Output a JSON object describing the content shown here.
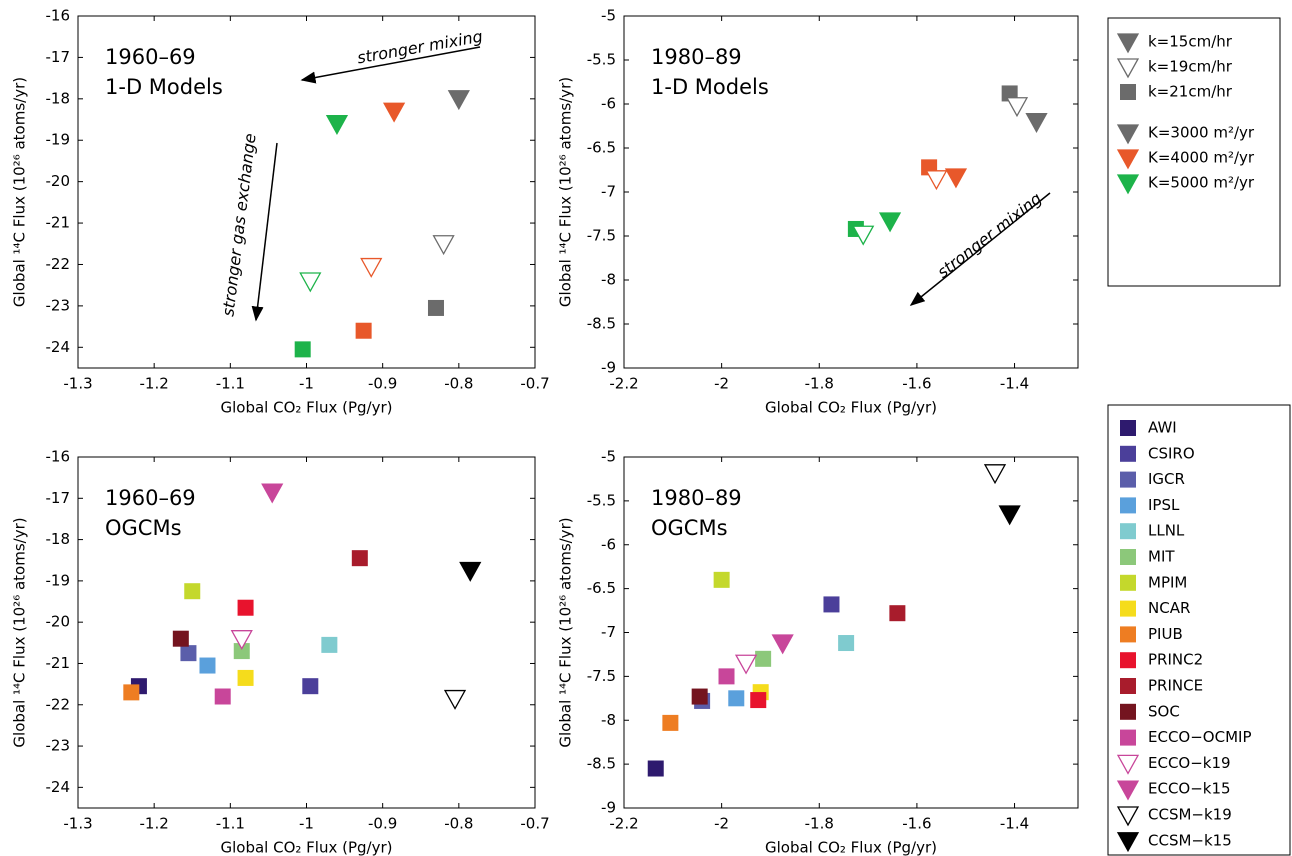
{
  "chart_data": [
    {
      "type": "scatter",
      "xlabel": "Global CO₂ Flux (Pg/yr)",
      "ylabel": "Global ¹⁴C Flux (10²⁶ atoms/yr)",
      "title_lines": [
        "1960–69",
        "1-D Models"
      ],
      "annotations": [
        "stronger mixing",
        "stronger gas exchange"
      ],
      "xlim": [
        -1.3,
        -0.7
      ],
      "xticks": [
        -1.3,
        -1.2,
        -1.1,
        -1,
        -0.9,
        -0.8,
        -0.7
      ],
      "ylim": [
        -24.5,
        -16
      ],
      "yticks": [
        -24,
        -23,
        -22,
        -21,
        -20,
        -19,
        -18,
        -17,
        -16
      ],
      "series": [
        {
          "color": "#6b6b6b",
          "markers": [
            "triangle-down",
            "triangle-down-open",
            "square"
          ],
          "x": [
            -0.8,
            -0.82,
            -0.83
          ],
          "values": [
            -18.0,
            -21.5,
            -23.05
          ]
        },
        {
          "color": "#e8582a",
          "markers": [
            "triangle-down",
            "triangle-down-open",
            "square"
          ],
          "x": [
            -0.885,
            -0.915,
            -0.925
          ],
          "values": [
            -18.3,
            -22.05,
            -23.6
          ]
        },
        {
          "color": "#1db34a",
          "markers": [
            "triangle-down",
            "triangle-down-open",
            "square"
          ],
          "x": [
            -0.96,
            -0.995,
            -1.005
          ],
          "values": [
            -18.6,
            -22.4,
            -24.05
          ]
        }
      ]
    },
    {
      "type": "scatter",
      "xlabel": "Global CO₂ Flux (Pg/yr)",
      "ylabel": "Global ¹⁴C Flux (10²⁶ atoms/yr)",
      "title_lines": [
        "1980–89",
        "1-D Models"
      ],
      "annotations": [
        "stronger mixing"
      ],
      "xlim": [
        -2.2,
        -1.27
      ],
      "xticks": [
        -2.2,
        -2,
        -1.8,
        -1.6,
        -1.4
      ],
      "ylim": [
        -9,
        -5
      ],
      "yticks": [
        -9,
        -8.5,
        -8,
        -7.5,
        -7,
        -6.5,
        -6,
        -5.5,
        -5
      ],
      "series": [
        {
          "color": "#6b6b6b",
          "markers": [
            "square",
            "triangle-down-open",
            "triangle-down"
          ],
          "x": [
            -1.41,
            -1.395,
            -1.355
          ],
          "values": [
            -5.88,
            -6.02,
            -6.2
          ]
        },
        {
          "color": "#e8582a",
          "markers": [
            "square",
            "triangle-down-open",
            "triangle-down"
          ],
          "x": [
            -1.575,
            -1.56,
            -1.52
          ],
          "values": [
            -6.72,
            -6.85,
            -6.83
          ]
        },
        {
          "color": "#1db34a",
          "markers": [
            "square",
            "triangle-down-open",
            "triangle-down"
          ],
          "x": [
            -1.725,
            -1.71,
            -1.655
          ],
          "values": [
            -7.42,
            -7.48,
            -7.33
          ]
        }
      ]
    },
    {
      "type": "scatter",
      "xlabel": "Global CO₂ Flux (Pg/yr)",
      "ylabel": "Global ¹⁴C Flux (10²⁶ atoms/yr)",
      "title_lines": [
        "1960–69",
        "OGCMs"
      ],
      "xlim": [
        -1.3,
        -0.7
      ],
      "xticks": [
        -1.3,
        -1.2,
        -1.1,
        -1,
        -0.9,
        -0.8,
        -0.7
      ],
      "ylim": [
        -24.5,
        -16
      ],
      "yticks": [
        -24,
        -23,
        -22,
        -21,
        -20,
        -19,
        -18,
        -17,
        -16
      ],
      "series": [
        {
          "color": "#2e1a6e",
          "markers": [
            "square"
          ],
          "x": [
            -1.22
          ],
          "values": [
            -21.55
          ]
        },
        {
          "color": "#4b3f9a",
          "markers": [
            "square"
          ],
          "x": [
            -0.995
          ],
          "values": [
            -21.55
          ]
        },
        {
          "color": "#5b5eaa",
          "markers": [
            "square"
          ],
          "x": [
            -1.155
          ],
          "values": [
            -20.75
          ]
        },
        {
          "color": "#5aa0dc",
          "markers": [
            "square"
          ],
          "x": [
            -1.13
          ],
          "values": [
            -21.05
          ]
        },
        {
          "color": "#7fcbcf",
          "markers": [
            "square"
          ],
          "x": [
            -0.97
          ],
          "values": [
            -20.55
          ]
        },
        {
          "color": "#8cc87a",
          "markers": [
            "square"
          ],
          "x": [
            -1.085
          ],
          "values": [
            -20.7
          ]
        },
        {
          "color": "#c4d82c",
          "markers": [
            "square"
          ],
          "x": [
            -1.15
          ],
          "values": [
            -19.25
          ]
        },
        {
          "color": "#f5dc1c",
          "markers": [
            "square"
          ],
          "x": [
            -1.08
          ],
          "values": [
            -21.35
          ]
        },
        {
          "color": "#ee7d22",
          "markers": [
            "square"
          ],
          "x": [
            -1.23
          ],
          "values": [
            -21.7
          ]
        },
        {
          "color": "#e8132d",
          "markers": [
            "square"
          ],
          "x": [
            -1.08
          ],
          "values": [
            -19.65
          ]
        },
        {
          "color": "#a81c2c",
          "markers": [
            "square"
          ],
          "x": [
            -0.93
          ],
          "values": [
            -18.45
          ]
        },
        {
          "color": "#74141f",
          "markers": [
            "square"
          ],
          "x": [
            -1.165
          ],
          "values": [
            -20.4
          ]
        },
        {
          "color": "#c8469a",
          "markers": [
            "square"
          ],
          "x": [
            -1.11
          ],
          "values": [
            -21.8
          ]
        },
        {
          "color": "#c8469a",
          "markers": [
            "triangle-down-open"
          ],
          "x": [
            -1.085
          ],
          "values": [
            -20.4
          ]
        },
        {
          "color": "#c8469a",
          "markers": [
            "triangle-down"
          ],
          "x": [
            -1.045
          ],
          "values": [
            -16.85
          ]
        },
        {
          "color": "#000000",
          "markers": [
            "triangle-down-open"
          ],
          "x": [
            -0.805
          ],
          "values": [
            -21.85
          ]
        },
        {
          "color": "#000000",
          "markers": [
            "triangle-down"
          ],
          "x": [
            -0.785
          ],
          "values": [
            -18.75
          ]
        }
      ]
    },
    {
      "type": "scatter",
      "xlabel": "Global CO₂ Flux (Pg/yr)",
      "ylabel": "Global ¹⁴C Flux (10²⁶ atoms/yr)",
      "title_lines": [
        "1980–89",
        "OGCMs"
      ],
      "xlim": [
        -2.2,
        -1.27
      ],
      "xticks": [
        -2.2,
        -2,
        -1.8,
        -1.6,
        -1.4
      ],
      "ylim": [
        -9,
        -5
      ],
      "yticks": [
        -9,
        -8.5,
        -8,
        -7.5,
        -7,
        -6.5,
        -6,
        -5.5,
        -5
      ],
      "series": [
        {
          "color": "#2e1a6e",
          "markers": [
            "square"
          ],
          "x": [
            -2.135
          ],
          "values": [
            -8.55
          ]
        },
        {
          "color": "#4b3f9a",
          "markers": [
            "square"
          ],
          "x": [
            -1.775
          ],
          "values": [
            -6.68
          ]
        },
        {
          "color": "#5b5eaa",
          "markers": [
            "square"
          ],
          "x": [
            -2.04
          ],
          "values": [
            -7.78
          ]
        },
        {
          "color": "#5aa0dc",
          "markers": [
            "square"
          ],
          "x": [
            -1.97
          ],
          "values": [
            -7.75
          ]
        },
        {
          "color": "#7fcbcf",
          "markers": [
            "square"
          ],
          "x": [
            -1.745
          ],
          "values": [
            -7.12
          ]
        },
        {
          "color": "#8cc87a",
          "markers": [
            "square"
          ],
          "x": [
            -1.915
          ],
          "values": [
            -7.3
          ]
        },
        {
          "color": "#c4d82c",
          "markers": [
            "square"
          ],
          "x": [
            -2.0
          ],
          "values": [
            -6.4
          ]
        },
        {
          "color": "#f5dc1c",
          "markers": [
            "square"
          ],
          "x": [
            -1.92
          ],
          "values": [
            -7.68
          ]
        },
        {
          "color": "#ee7d22",
          "markers": [
            "square"
          ],
          "x": [
            -2.105
          ],
          "values": [
            -8.03
          ]
        },
        {
          "color": "#e8132d",
          "markers": [
            "square"
          ],
          "x": [
            -1.925
          ],
          "values": [
            -7.77
          ]
        },
        {
          "color": "#a81c2c",
          "markers": [
            "square"
          ],
          "x": [
            -1.64
          ],
          "values": [
            -6.78
          ]
        },
        {
          "color": "#74141f",
          "markers": [
            "square"
          ],
          "x": [
            -2.045
          ],
          "values": [
            -7.73
          ]
        },
        {
          "color": "#c8469a",
          "markers": [
            "square"
          ],
          "x": [
            -1.99
          ],
          "values": [
            -7.5
          ]
        },
        {
          "color": "#c8469a",
          "markers": [
            "triangle-down-open"
          ],
          "x": [
            -1.95
          ],
          "values": [
            -7.35
          ]
        },
        {
          "color": "#c8469a",
          "markers": [
            "triangle-down"
          ],
          "x": [
            -1.875
          ],
          "values": [
            -7.12
          ]
        },
        {
          "color": "#000000",
          "markers": [
            "triangle-down-open"
          ],
          "x": [
            -1.44
          ],
          "values": [
            -5.18
          ]
        },
        {
          "color": "#000000",
          "markers": [
            "triangle-down"
          ],
          "x": [
            -1.41
          ],
          "values": [
            -5.65
          ]
        }
      ]
    }
  ],
  "legends": [
    {
      "entries": [
        {
          "name": "k=15cm/hr",
          "marker": "triangle-down",
          "color": "#6b6b6b"
        },
        {
          "name": "k=19cm/hr",
          "marker": "triangle-down-open",
          "color": "#6b6b6b"
        },
        {
          "name": "k=21cm/hr",
          "marker": "square",
          "color": "#6b6b6b"
        },
        {
          "name": "K=3000 m²/yr",
          "marker": "triangle-down",
          "color": "#6b6b6b"
        },
        {
          "name": "K=4000 m²/yr",
          "marker": "triangle-down",
          "color": "#e8582a"
        },
        {
          "name": "K=5000 m²/yr",
          "marker": "triangle-down",
          "color": "#1db34a"
        }
      ]
    },
    {
      "entries": [
        {
          "name": "AWI",
          "marker": "square",
          "color": "#2e1a6e"
        },
        {
          "name": "CSIRO",
          "marker": "square",
          "color": "#4b3f9a"
        },
        {
          "name": "IGCR",
          "marker": "square",
          "color": "#5b5eaa"
        },
        {
          "name": "IPSL",
          "marker": "square",
          "color": "#5aa0dc"
        },
        {
          "name": "LLNL",
          "marker": "square",
          "color": "#7fcbcf"
        },
        {
          "name": "MIT",
          "marker": "square",
          "color": "#8cc87a"
        },
        {
          "name": "MPIM",
          "marker": "square",
          "color": "#c4d82c"
        },
        {
          "name": "NCAR",
          "marker": "square",
          "color": "#f5dc1c"
        },
        {
          "name": "PIUB",
          "marker": "square",
          "color": "#ee7d22"
        },
        {
          "name": "PRINC2",
          "marker": "square",
          "color": "#e8132d"
        },
        {
          "name": "PRINCE",
          "marker": "square",
          "color": "#a81c2c"
        },
        {
          "name": "SOC",
          "marker": "square",
          "color": "#74141f"
        },
        {
          "name": "ECCO−OCMIP",
          "marker": "square",
          "color": "#c8469a"
        },
        {
          "name": "ECCO−k19",
          "marker": "triangle-down-open",
          "color": "#c8469a"
        },
        {
          "name": "ECCO−k15",
          "marker": "triangle-down",
          "color": "#c8469a"
        },
        {
          "name": "CCSM−k19",
          "marker": "triangle-down-open",
          "color": "#000000"
        },
        {
          "name": "CCSM−k15",
          "marker": "triangle-down",
          "color": "#000000"
        }
      ]
    }
  ]
}
